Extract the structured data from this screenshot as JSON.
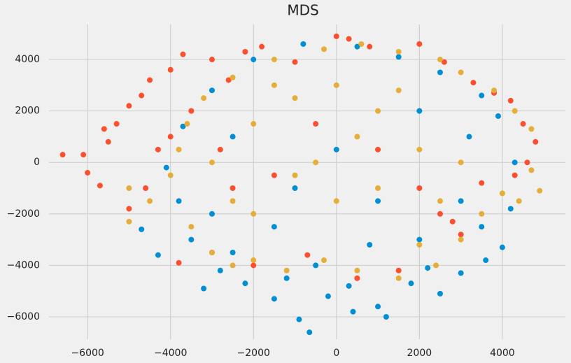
{
  "chart_data": {
    "type": "scatter",
    "title": "MDS",
    "xlim": [
      -6930,
      5520
    ],
    "ylim": [
      -6870,
      5360
    ],
    "xticks": [
      {
        "value": -6000,
        "label": "−6000"
      },
      {
        "value": -4000,
        "label": "−4000"
      },
      {
        "value": -2000,
        "label": "−2000"
      },
      0,
      2000,
      4000
    ],
    "yticks": [
      {
        "value": -6000,
        "label": "−6000"
      },
      {
        "value": -4000,
        "label": "−4000"
      },
      {
        "value": -2000,
        "label": "−2000"
      },
      0,
      2000,
      4000
    ],
    "grid": true,
    "series": [
      {
        "color": "#008fd5",
        "x": [
          -3800,
          -3500,
          -3200,
          -2800,
          -2200,
          -1500,
          -900,
          -650,
          -200,
          400,
          1000,
          1200,
          1800,
          2500,
          3000,
          3600,
          4000,
          4200,
          4300,
          3900,
          3500,
          2500,
          1500,
          500,
          -800,
          -2000,
          -3000,
          -3700,
          -4100,
          -4700,
          -4300,
          -2500,
          -1500,
          -500,
          800,
          2000,
          3000,
          3200,
          2000,
          0,
          -1000,
          -2500,
          1000,
          3500,
          -3000,
          300,
          -1200,
          2200
        ],
        "values": [
          -1500,
          -3000,
          -4900,
          -4200,
          -4700,
          -5300,
          -6100,
          -6600,
          -5200,
          -5800,
          -5600,
          -6000,
          -4700,
          -5100,
          -4300,
          -3800,
          -3300,
          -1800,
          0,
          1800,
          2600,
          3500,
          4100,
          4500,
          4600,
          4000,
          2800,
          1400,
          -200,
          -2600,
          -3600,
          -3500,
          -2500,
          -4000,
          -3200,
          -3000,
          -1500,
          1000,
          2000,
          500,
          -1000,
          1000,
          -1500,
          -2500,
          -2000,
          -4800,
          -4500,
          -4100
        ]
      },
      {
        "color": "#fc4f30",
        "x": [
          -6600,
          -6100,
          -6000,
          -5700,
          -5600,
          -5500,
          -5300,
          -5000,
          -5000,
          -4700,
          -4600,
          -4500,
          -4300,
          -4000,
          -3700,
          -3500,
          -3000,
          -2600,
          -2200,
          -1800,
          -1000,
          0,
          300,
          800,
          2000,
          2600,
          3300,
          3800,
          4200,
          4500,
          4800,
          4600,
          4300,
          3500,
          2800,
          2500,
          3000,
          2000,
          1000,
          -500,
          -1500,
          -2500,
          -3000,
          -2000,
          -700,
          500,
          1500,
          -3800,
          -4000,
          -2800
        ],
        "values": [
          300,
          300,
          -400,
          -900,
          1300,
          800,
          1500,
          -1800,
          2200,
          2600,
          -1000,
          3200,
          500,
          3600,
          4200,
          2000,
          4000,
          3200,
          4300,
          4500,
          3900,
          4900,
          4800,
          4500,
          4600,
          3900,
          3100,
          2700,
          2400,
          1500,
          800,
          0,
          -500,
          -800,
          -2300,
          -2000,
          -2800,
          -1000,
          500,
          1500,
          -500,
          -1000,
          -3500,
          -4000,
          -3600,
          -4500,
          -4200,
          -3900,
          1000,
          500
        ]
      },
      {
        "color": "#e5ae38",
        "x": [
          -5000,
          -5000,
          -4500,
          -4000,
          -3800,
          -3500,
          -3000,
          -2500,
          -2000,
          -1200,
          -300,
          500,
          1500,
          2000,
          2400,
          3000,
          3500,
          4000,
          4400,
          4700,
          4900,
          4700,
          4300,
          3800,
          3000,
          2500,
          1500,
          600,
          -300,
          -1500,
          -2500,
          -3200,
          -3600,
          -3000,
          -2000,
          -1000,
          0,
          1000,
          2000,
          1000,
          0,
          -1000,
          -2000,
          500,
          3000,
          -1500,
          2500,
          -500,
          1500,
          -2500
        ],
        "values": [
          -2300,
          -1000,
          -1500,
          -500,
          500,
          -2500,
          -3500,
          -4000,
          -3800,
          -4200,
          -3800,
          -4200,
          -4500,
          -3200,
          -4000,
          -3000,
          -2000,
          -1200,
          -1500,
          -300,
          -1100,
          1300,
          2000,
          2800,
          3500,
          4000,
          4300,
          4600,
          4400,
          4000,
          3300,
          2500,
          1500,
          0,
          1500,
          2500,
          3000,
          2000,
          500,
          -1000,
          -1500,
          -500,
          -2000,
          1000,
          0,
          3000,
          -1500,
          0,
          2800,
          -1500
        ]
      }
    ]
  }
}
